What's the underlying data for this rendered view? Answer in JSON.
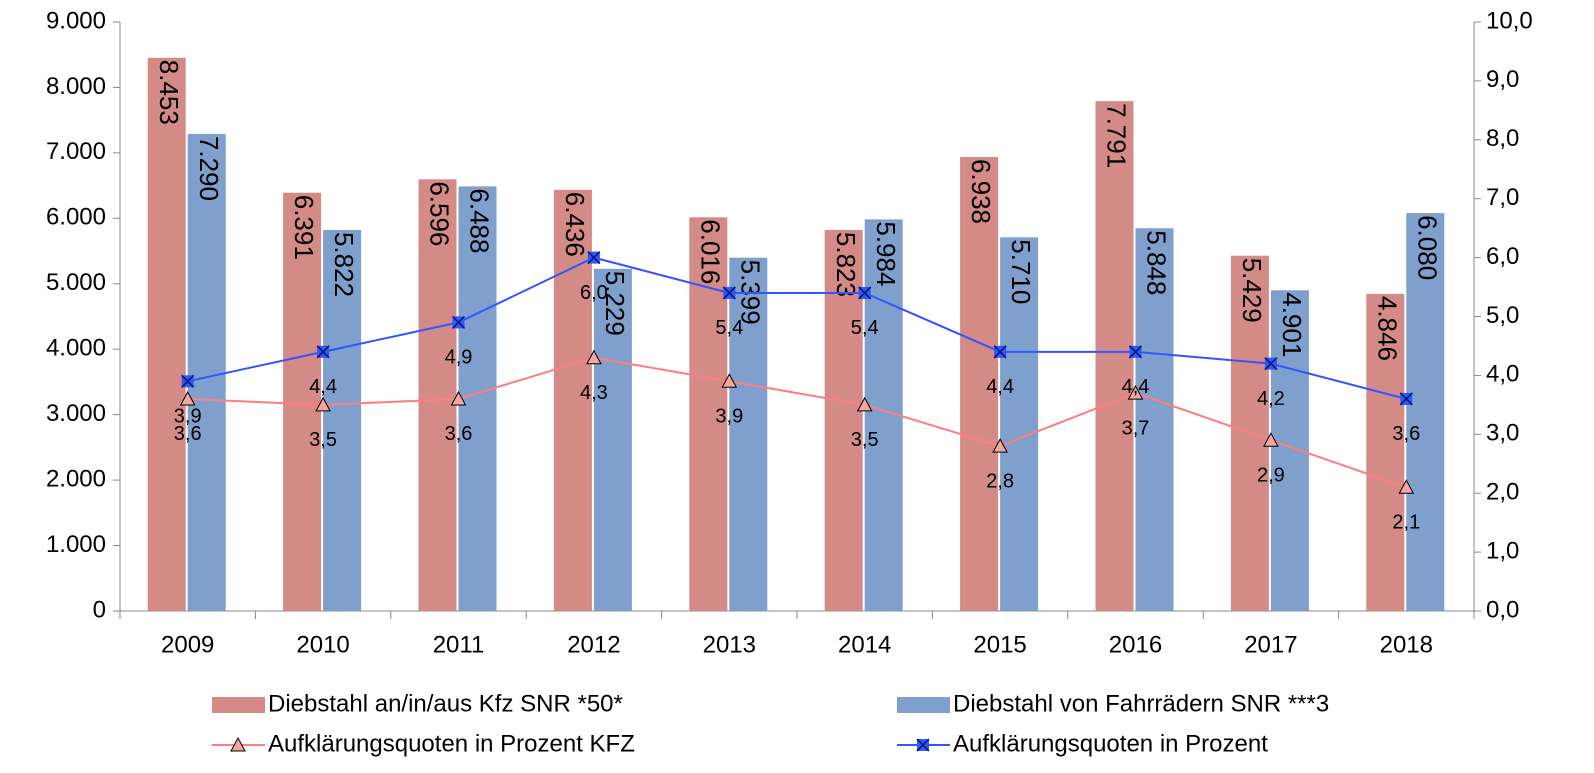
{
  "chart_data": {
    "type": "bar",
    "categories": [
      "2009",
      "2010",
      "2011",
      "2012",
      "2013",
      "2014",
      "2015",
      "2016",
      "2017",
      "2018"
    ],
    "series": [
      {
        "name": "Diebstahl an/in/aus Kfz SNR *50*",
        "type": "bar",
        "color": "#d48a87",
        "values": [
          8453,
          6391,
          6596,
          6436,
          6016,
          5823,
          6938,
          7791,
          5429,
          4846
        ],
        "value_labels": [
          "8.453",
          "6.391",
          "6.596",
          "6.436",
          "6.016",
          "5.823",
          "6.938",
          "7.791",
          "5.429",
          "4.846"
        ]
      },
      {
        "name": "Diebstahl von Fahrrädern SNR ***3",
        "type": "bar",
        "color": "#7fa0cc",
        "values": [
          7290,
          5822,
          6488,
          5229,
          5399,
          5984,
          5710,
          5848,
          4901,
          6080
        ],
        "value_labels": [
          "7.290",
          "5.822",
          "6.488",
          "5.229",
          "5.399",
          "5.984",
          "5.710",
          "5.848",
          "4.901",
          "6.080"
        ]
      },
      {
        "name": "Aufklärungsquoten in Prozent KFZ",
        "type": "line",
        "axis": "y2",
        "color": "#ff7c80",
        "marker": "triangle",
        "values": [
          3.6,
          3.5,
          3.6,
          4.3,
          3.9,
          3.5,
          2.8,
          3.7,
          2.9,
          2.1
        ],
        "value_labels": [
          "3,6",
          "3,5",
          "3,6",
          "4,3",
          "3,9",
          "3,5",
          "2,8",
          "3,7",
          "2,9",
          "2,1"
        ]
      },
      {
        "name": "Aufklärungsquoten in Prozent",
        "type": "line",
        "axis": "y2",
        "color": "#3355ff",
        "marker": "x-square",
        "values": [
          3.9,
          4.4,
          4.9,
          6.0,
          5.4,
          5.4,
          4.4,
          4.4,
          4.2,
          3.6
        ],
        "value_labels": [
          "3,9",
          "4,4",
          "4,9",
          "6,0",
          "5,4",
          "5,4",
          "4,4",
          "4,4",
          "4,2",
          "3,6"
        ]
      }
    ],
    "ylim": [
      0,
      9000
    ],
    "yticks": [
      {
        "value": 0,
        "label": "0"
      },
      {
        "value": 1000,
        "label": "1.000"
      },
      {
        "value": 2000,
        "label": "2.000"
      },
      {
        "value": 3000,
        "label": "3.000"
      },
      {
        "value": 4000,
        "label": "4.000"
      },
      {
        "value": 5000,
        "label": "5.000"
      },
      {
        "value": 6000,
        "label": "6.000"
      },
      {
        "value": 7000,
        "label": "7.000"
      },
      {
        "value": 8000,
        "label": "8.000"
      },
      {
        "value": 9000,
        "label": "9.000"
      }
    ],
    "y2lim": [
      0,
      10
    ],
    "y2ticks": [
      {
        "value": 0,
        "label": "0,0"
      },
      {
        "value": 1,
        "label": "1,0"
      },
      {
        "value": 2,
        "label": "2,0"
      },
      {
        "value": 3,
        "label": "3,0"
      },
      {
        "value": 4,
        "label": "4,0"
      },
      {
        "value": 5,
        "label": "5,0"
      },
      {
        "value": 6,
        "label": "6,0"
      },
      {
        "value": 7,
        "label": "7,0"
      },
      {
        "value": 8,
        "label": "8,0"
      },
      {
        "value": 9,
        "label": "9,0"
      },
      {
        "value": 10,
        "label": "10,0"
      }
    ],
    "grid": false,
    "legend": "bottom"
  }
}
